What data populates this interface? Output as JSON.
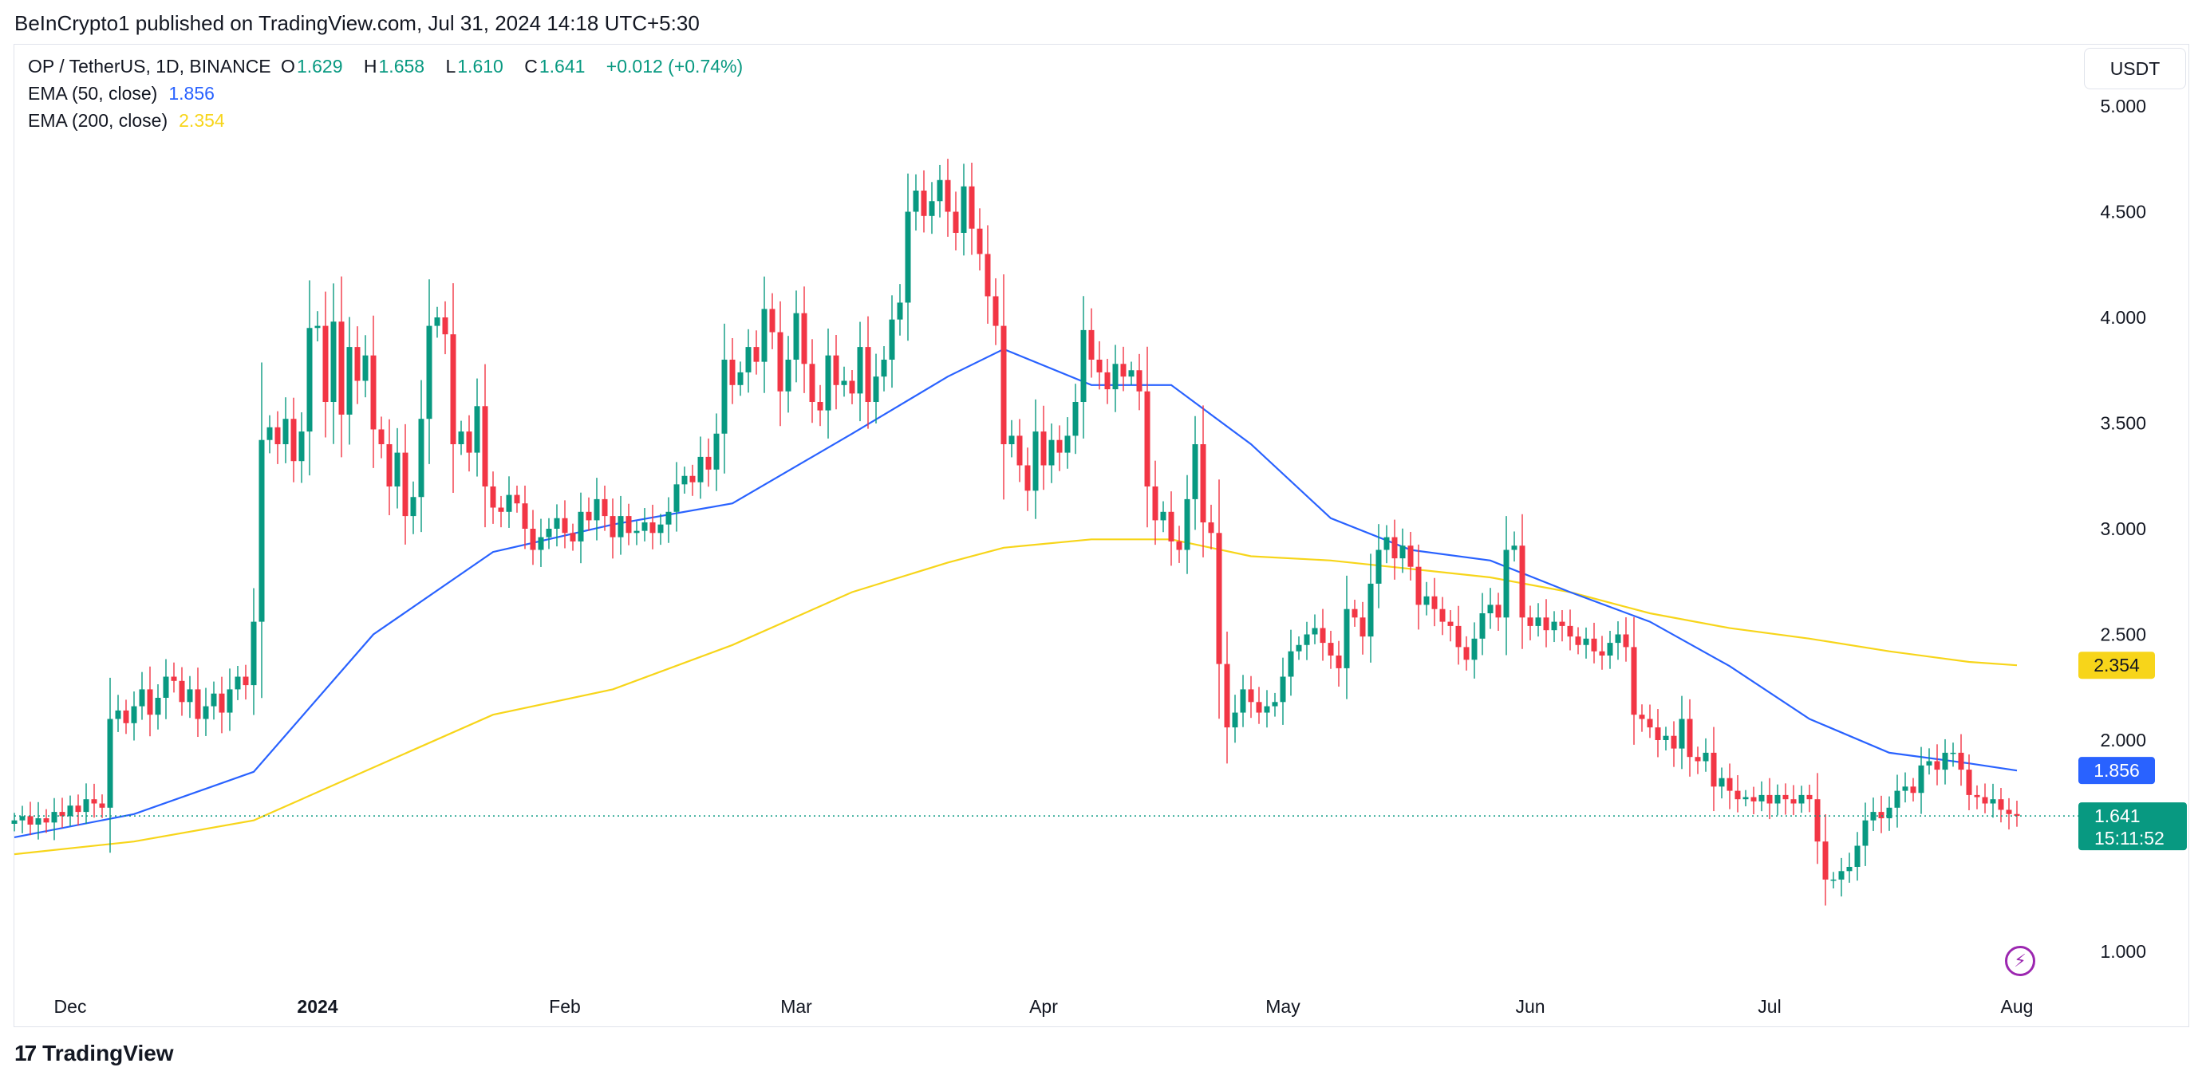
{
  "publisher_line": "BeInCrypto1 published on TradingView.com, Jul 31, 2024 14:18 UTC+5:30",
  "legend": {
    "symbol": "OP / TetherUS, 1D, BINANCE",
    "o_label": "O",
    "o": "1.629",
    "h_label": "H",
    "h": "1.658",
    "l_label": "L",
    "l": "1.610",
    "c_label": "C",
    "c": "1.641",
    "change": "+0.012 (+0.74%)",
    "ema50_label": "EMA (50, close)",
    "ema50_value": "1.856",
    "ema200_label": "EMA (200, close)",
    "ema200_value": "2.354"
  },
  "unit": "USDT",
  "price_tag": {
    "value": "1.641",
    "countdown": "15:11:52"
  },
  "footer": {
    "brand": "TradingView"
  },
  "colors": {
    "up": "#089981",
    "down": "#f23645",
    "ema50": "#2962ff",
    "ema200": "#f7d51a",
    "price_line": "#089981"
  },
  "chart_data": {
    "type": "candlestick",
    "y_axis_scale": "log",
    "y_ticks": [
      "5.000",
      "4.500",
      "4.000",
      "3.500",
      "3.000",
      "2.500",
      "2.000",
      "1.000"
    ],
    "x_ticks": [
      {
        "label": "Dec",
        "day": 7
      },
      {
        "label": "2024",
        "day": 38
      },
      {
        "label": "Feb",
        "day": 69
      },
      {
        "label": "Mar",
        "day": 98
      },
      {
        "label": "Apr",
        "day": 129
      },
      {
        "label": "May",
        "day": 159
      },
      {
        "label": "Jun",
        "day": 190
      },
      {
        "label": "Jul",
        "day": 220
      },
      {
        "label": "Aug",
        "day": 251
      }
    ],
    "grid": false,
    "last_price": 1.641,
    "closes": [
      1.62,
      1.64,
      1.6,
      1.63,
      1.61,
      1.66,
      1.64,
      1.69,
      1.66,
      1.72,
      1.7,
      1.68,
      2.1,
      2.14,
      2.08,
      2.16,
      2.24,
      2.12,
      2.2,
      2.3,
      2.28,
      2.18,
      2.24,
      2.1,
      2.16,
      2.22,
      2.13,
      2.24,
      2.3,
      2.26,
      2.56,
      3.42,
      3.48,
      3.4,
      3.52,
      3.32,
      3.46,
      3.95,
      3.96,
      3.6,
      3.98,
      3.54,
      3.86,
      3.7,
      3.82,
      3.47,
      3.4,
      3.2,
      3.36,
      3.06,
      3.15,
      3.52,
      3.96,
      4.0,
      3.92,
      3.4,
      3.46,
      3.36,
      3.58,
      3.2,
      3.1,
      3.08,
      3.16,
      3.12,
      3.0,
      2.9,
      2.96,
      3.0,
      3.05,
      2.98,
      2.94,
      3.08,
      3.04,
      3.14,
      3.06,
      2.96,
      3.06,
      2.98,
      2.99,
      3.03,
      2.98,
      3.02,
      3.08,
      3.21,
      3.25,
      3.22,
      3.34,
      3.28,
      3.45,
      3.8,
      3.68,
      3.74,
      3.86,
      3.79,
      4.04,
      3.93,
      3.65,
      3.8,
      4.02,
      3.78,
      3.6,
      3.56,
      3.82,
      3.68,
      3.7,
      3.64,
      3.86,
      3.6,
      3.72,
      3.8,
      3.99,
      4.07,
      4.5,
      4.6,
      4.48,
      4.55,
      4.65,
      4.5,
      4.4,
      4.62,
      4.42,
      4.3,
      4.1,
      3.96,
      3.4,
      3.44,
      3.3,
      3.18,
      3.46,
      3.3,
      3.42,
      3.36,
      3.44,
      3.6,
      3.94,
      3.8,
      3.74,
      3.66,
      3.78,
      3.72,
      3.75,
      3.65,
      3.2,
      3.04,
      3.08,
      2.94,
      2.9,
      3.14,
      3.4,
      3.03,
      2.98,
      2.36,
      2.06,
      2.13,
      2.24,
      2.18,
      2.13,
      2.16,
      2.18,
      2.3,
      2.42,
      2.45,
      2.5,
      2.53,
      2.46,
      2.4,
      2.34,
      2.62,
      2.58,
      2.49,
      2.74,
      2.9,
      2.96,
      2.86,
      2.92,
      2.82,
      2.64,
      2.68,
      2.62,
      2.56,
      2.54,
      2.44,
      2.38,
      2.48,
      2.6,
      2.64,
      2.58,
      2.9,
      2.92,
      2.58,
      2.54,
      2.58,
      2.52,
      2.56,
      2.54,
      2.49,
      2.45,
      2.48,
      2.42,
      2.4,
      2.46,
      2.5,
      2.44,
      2.12,
      2.1,
      2.06,
      2.0,
      2.02,
      1.96,
      2.1,
      1.92,
      1.9,
      1.94,
      1.78,
      1.82,
      1.76,
      1.72,
      1.73,
      1.71,
      1.74,
      1.7,
      1.74,
      1.72,
      1.7,
      1.74,
      1.72,
      1.52,
      1.34,
      1.34,
      1.38,
      1.4,
      1.5,
      1.62,
      1.66,
      1.63,
      1.68,
      1.76,
      1.78,
      1.75,
      1.88,
      1.9,
      1.86,
      1.94,
      1.94,
      1.86,
      1.74,
      1.73,
      1.7,
      1.72,
      1.67,
      1.65,
      1.641
    ],
    "ema50_points": [
      [
        0,
        1.54
      ],
      [
        15,
        1.65
      ],
      [
        30,
        1.85
      ],
      [
        45,
        2.5
      ],
      [
        60,
        2.89
      ],
      [
        75,
        3.02
      ],
      [
        90,
        3.12
      ],
      [
        105,
        3.45
      ],
      [
        117,
        3.72
      ],
      [
        124,
        3.85
      ],
      [
        135,
        3.68
      ],
      [
        145,
        3.68
      ],
      [
        155,
        3.4
      ],
      [
        165,
        3.05
      ],
      [
        175,
        2.9
      ],
      [
        185,
        2.85
      ],
      [
        195,
        2.7
      ],
      [
        205,
        2.56
      ],
      [
        215,
        2.35
      ],
      [
        225,
        2.1
      ],
      [
        235,
        1.94
      ],
      [
        245,
        1.89
      ],
      [
        251,
        1.856
      ]
    ],
    "ema200_points": [
      [
        0,
        1.46
      ],
      [
        15,
        1.52
      ],
      [
        30,
        1.62
      ],
      [
        45,
        1.87
      ],
      [
        60,
        2.12
      ],
      [
        75,
        2.24
      ],
      [
        90,
        2.45
      ],
      [
        105,
        2.7
      ],
      [
        117,
        2.84
      ],
      [
        124,
        2.91
      ],
      [
        135,
        2.95
      ],
      [
        145,
        2.95
      ],
      [
        155,
        2.87
      ],
      [
        165,
        2.85
      ],
      [
        175,
        2.81
      ],
      [
        185,
        2.77
      ],
      [
        195,
        2.7
      ],
      [
        205,
        2.6
      ],
      [
        215,
        2.53
      ],
      [
        225,
        2.48
      ],
      [
        235,
        2.42
      ],
      [
        245,
        2.37
      ],
      [
        251,
        2.354
      ]
    ]
  }
}
